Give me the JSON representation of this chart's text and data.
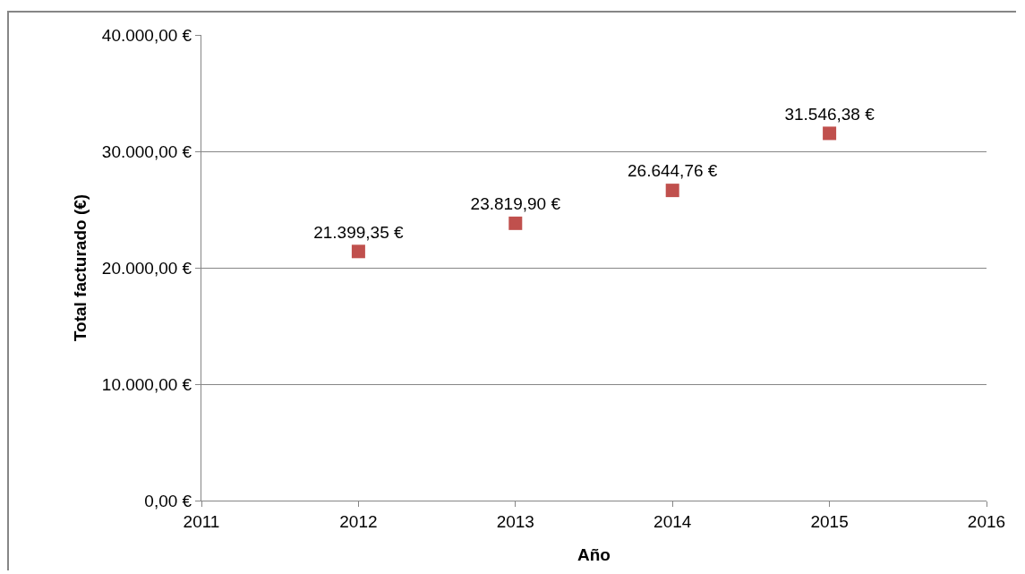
{
  "chart_data": {
    "type": "scatter",
    "xlabel": "Año",
    "ylabel": "Total facturado (€)",
    "x": [
      2012,
      2013,
      2014,
      2015
    ],
    "series": [
      {
        "color": "#c0504d",
        "values": [
          21399.35,
          23819.9,
          26644.76,
          31546.38
        ],
        "value_labels": [
          "21.399,35 €",
          "23.819,90 €",
          "26.644,76 €",
          "31.546,38 €"
        ]
      }
    ],
    "xlim": [
      2011,
      2016
    ],
    "xticks": [
      2011,
      2012,
      2013,
      2014,
      2015,
      2016
    ],
    "ylim": [
      0,
      40000
    ],
    "yticks": [
      {
        "value": 0,
        "label": "0,00 €"
      },
      {
        "value": 10000,
        "label": "10.000,00 €"
      },
      {
        "value": 20000,
        "label": "20.000,00 €"
      },
      {
        "value": 30000,
        "label": "30.000,00 €"
      },
      {
        "value": 40000,
        "label": "40.000,00 €"
      }
    ],
    "grid": "y",
    "marker": "square"
  }
}
